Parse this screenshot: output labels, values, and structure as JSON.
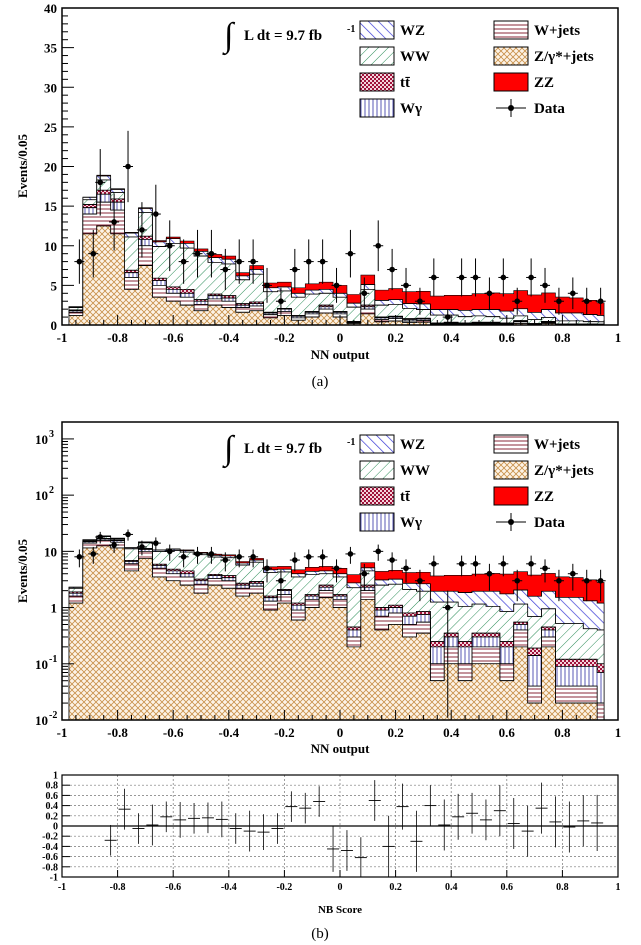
{
  "colors": {
    "WZ": "#3a3ad6",
    "WW": "#2f8f5a",
    "ttbar": "#a0123a",
    "Wgamma": "#5a5ab4",
    "Wjets": "#8a2a3a",
    "Zjets": "#c8904a",
    "ZZ": "#ff0000",
    "data": "#000000"
  },
  "icons": {
    "integral": "integral-sign-icon",
    "data_marker": "marker-with-error-bar-icon"
  },
  "panel_labels": {
    "a": "(a)",
    "b": "(b)"
  },
  "chart_data": [
    {
      "type": "area",
      "panel": "a",
      "scale": "linear",
      "xlabel": "NN output",
      "ylabel": "Events/0.05",
      "xlim": [
        -1,
        1
      ],
      "ylim": [
        0,
        40
      ],
      "xticks": [
        "-1",
        "-0.8",
        "-0.6",
        "-0.4",
        "-0.2",
        "0",
        "0.2",
        "0.4",
        "0.6",
        "0.8",
        "1"
      ],
      "yticks": [
        "0",
        "5",
        "10",
        "15",
        "20",
        "25",
        "30",
        "35",
        "40"
      ],
      "luminosity_label": "L dt = 9.7 fb",
      "luminosity_exponent": "-1",
      "legend": [
        {
          "label": "WZ",
          "key": "WZ",
          "style": "hatch-back"
        },
        {
          "label": "W+jets",
          "key": "Wjets",
          "style": "hatch-horizontal"
        },
        {
          "label": "WW",
          "key": "WW",
          "style": "hatch-forward"
        },
        {
          "label": "Z/γ*+jets",
          "key": "Zjets",
          "style": "hatch-cross"
        },
        {
          "label": "tt̄",
          "key": "ttbar",
          "style": "hatch-checker"
        },
        {
          "label": "ZZ",
          "key": "ZZ",
          "style": "solid"
        },
        {
          "label": "Wγ",
          "key": "Wgamma",
          "style": "hatch-vertical"
        },
        {
          "label": "Data",
          "key": "data",
          "style": "marker"
        }
      ],
      "bin_edges": [
        -0.975,
        -0.95,
        -0.925,
        -0.9,
        -0.875,
        -0.85,
        -0.825,
        -0.8,
        -0.775,
        -0.75,
        -0.725,
        -0.7,
        -0.675,
        -0.65,
        -0.625,
        -0.6,
        -0.575,
        -0.55,
        -0.525,
        -0.5,
        -0.475,
        -0.45,
        -0.425,
        -0.4,
        -0.375,
        -0.35,
        -0.325,
        -0.3,
        -0.275,
        -0.25,
        -0.225,
        -0.2,
        -0.175,
        -0.15,
        -0.125,
        -0.1,
        -0.075,
        -0.05,
        -0.025,
        0,
        0.025,
        0.05,
        0.075,
        0.1,
        0.125,
        0.15,
        0.175,
        0.2,
        0.225,
        0.25,
        0.275,
        0.3,
        0.325,
        0.35,
        0.375,
        0.4,
        0.425,
        0.45,
        0.475,
        0.5,
        0.525,
        0.55,
        0.575,
        0.6,
        0.625,
        0.65,
        0.675,
        0.7,
        0.725,
        0.75,
        0.775,
        0.8,
        0.825,
        0.85,
        0.875,
        0.9,
        0.925,
        0.95
      ],
      "stack_order": [
        "Zjets",
        "Wjets",
        "Wgamma",
        "ttbar",
        "WW",
        "WZ",
        "ZZ"
      ],
      "series": [
        {
          "name": "Z/γ*+jets",
          "key": "Zjets",
          "values": [
            1.2,
            1.2,
            11.5,
            11.5,
            12.5,
            12.5,
            11.5,
            11.5,
            4.5,
            4.5,
            7.5,
            7.5,
            3.5,
            3.5,
            3.0,
            3.0,
            2.5,
            2.5,
            1.8,
            1.8,
            2.5,
            2.5,
            2.2,
            2.2,
            1.6,
            1.6,
            1.8,
            1.8,
            0.9,
            0.9,
            1.2,
            1.2,
            0.6,
            0.6,
            1.0,
            1.0,
            1.5,
            1.5,
            1.0,
            1.0,
            0.2,
            0.2,
            1.4,
            1.4,
            0.4,
            0.4,
            0.5,
            0.5,
            0.3,
            0.3,
            0.35,
            0.35,
            0.05,
            0.05,
            0.1,
            0.1,
            0.05,
            0.05,
            0.1,
            0.1,
            0.1,
            0.1,
            0.05,
            0.05,
            0.2,
            0.2,
            0.02,
            0.02,
            0.2,
            0.2,
            0.02,
            0.02,
            0.02,
            0.02,
            0.02,
            0.02,
            0.01
          ]
        },
        {
          "name": "W+jets",
          "key": "Wjets",
          "values": [
            0.4,
            0.4,
            2.5,
            2.5,
            3.0,
            3.0,
            3.0,
            3.0,
            1.5,
            1.5,
            2.5,
            2.5,
            1.5,
            1.5,
            1.0,
            1.0,
            1.0,
            1.0,
            0.8,
            0.8,
            0.8,
            0.8,
            0.8,
            0.8,
            0.6,
            0.6,
            0.6,
            0.6,
            0.4,
            0.4,
            0.5,
            0.5,
            0.3,
            0.3,
            0.4,
            0.4,
            0.5,
            0.5,
            0.4,
            0.4,
            0.1,
            0.1,
            0.6,
            0.6,
            0.3,
            0.3,
            0.3,
            0.3,
            0.2,
            0.2,
            0.2,
            0.2,
            0.05,
            0.05,
            0.1,
            0.1,
            0.05,
            0.05,
            0.1,
            0.1,
            0.1,
            0.1,
            0.05,
            0.05,
            0.2,
            0.2,
            0.02,
            0.02,
            0.1,
            0.1,
            0.02,
            0.02,
            0.02,
            0.02,
            0.02,
            0.02,
            0.01
          ]
        },
        {
          "name": "Wγ",
          "key": "Wgamma",
          "values": [
            0.2,
            0.2,
            0.8,
            0.8,
            1.0,
            1.0,
            1.0,
            1.0,
            0.6,
            0.6,
            0.8,
            0.8,
            0.6,
            0.6,
            0.5,
            0.5,
            0.5,
            0.5,
            0.4,
            0.4,
            0.4,
            0.4,
            0.4,
            0.4,
            0.3,
            0.3,
            0.3,
            0.3,
            0.2,
            0.2,
            0.3,
            0.3,
            0.2,
            0.2,
            0.2,
            0.2,
            0.3,
            0.3,
            0.2,
            0.2,
            0.1,
            0.1,
            0.3,
            0.3,
            0.2,
            0.2,
            0.2,
            0.2,
            0.2,
            0.2,
            0.2,
            0.2,
            0.1,
            0.1,
            0.1,
            0.1,
            0.1,
            0.1,
            0.1,
            0.1,
            0.1,
            0.1,
            0.1,
            0.1,
            0.1,
            0.1,
            0.1,
            0.1,
            0.1,
            0.1,
            0.05,
            0.05,
            0.05,
            0.05,
            0.05,
            0.05,
            0.05
          ]
        },
        {
          "name": "tt̄",
          "key": "ttbar",
          "values": [
            0.1,
            0.1,
            0.4,
            0.4,
            0.5,
            0.5,
            0.4,
            0.4,
            0.3,
            0.3,
            0.4,
            0.4,
            0.3,
            0.3,
            0.3,
            0.3,
            0.5,
            0.5,
            0.2,
            0.2,
            0.2,
            0.2,
            0.3,
            0.3,
            0.2,
            0.2,
            0.2,
            0.2,
            0.1,
            0.1,
            0.1,
            0.1,
            0.1,
            0.1,
            0.1,
            0.1,
            0.2,
            0.2,
            0.1,
            0.1,
            0.05,
            0.05,
            0.2,
            0.2,
            0.1,
            0.1,
            0.1,
            0.1,
            0.1,
            0.1,
            0.1,
            0.1,
            0.05,
            0.05,
            0.05,
            0.05,
            0.05,
            0.05,
            0.05,
            0.05,
            0.05,
            0.05,
            0.05,
            0.05,
            0.05,
            0.05,
            0.05,
            0.05,
            0.05,
            0.05,
            0.03,
            0.03,
            0.03,
            0.03,
            0.03,
            0.03,
            0.03
          ]
        },
        {
          "name": "WW",
          "key": "WW",
          "values": [
            0.3,
            0.3,
            0.6,
            0.6,
            1.3,
            1.3,
            0.8,
            0.8,
            4.2,
            4.2,
            3.0,
            3.0,
            4.0,
            4.0,
            5.5,
            5.5,
            5.2,
            5.2,
            5.5,
            5.5,
            4.0,
            4.0,
            4.0,
            4.0,
            3.0,
            3.0,
            3.5,
            3.5,
            2.6,
            2.6,
            2.2,
            2.2,
            2.3,
            2.3,
            2.2,
            2.2,
            1.5,
            1.5,
            1.8,
            1.8,
            1.8,
            1.8,
            2.0,
            2.0,
            1.5,
            1.5,
            1.5,
            1.5,
            1.3,
            1.3,
            1.1,
            1.1,
            1.0,
            1.0,
            0.9,
            0.9,
            0.8,
            0.8,
            0.8,
            0.8,
            0.7,
            0.7,
            0.6,
            0.6,
            0.6,
            0.6,
            0.5,
            0.5,
            0.5,
            0.5,
            0.4,
            0.4,
            0.4,
            0.4,
            0.3,
            0.3,
            0.3
          ]
        },
        {
          "name": "WZ",
          "key": "WZ",
          "values": [
            0.1,
            0.1,
            0.3,
            0.3,
            0.5,
            0.5,
            0.4,
            0.4,
            0.5,
            0.5,
            0.5,
            0.5,
            0.6,
            0.6,
            0.6,
            0.6,
            0.6,
            0.6,
            0.6,
            0.6,
            0.6,
            0.6,
            0.6,
            0.6,
            0.5,
            0.5,
            0.6,
            0.6,
            0.5,
            0.5,
            0.5,
            0.5,
            0.5,
            0.5,
            0.5,
            0.5,
            0.5,
            0.5,
            0.5,
            0.5,
            0.5,
            0.5,
            0.6,
            0.6,
            0.6,
            0.6,
            0.6,
            0.6,
            0.6,
            0.6,
            0.7,
            0.7,
            0.7,
            0.7,
            0.7,
            0.7,
            0.8,
            0.8,
            0.8,
            0.8,
            0.9,
            0.9,
            0.9,
            0.9,
            0.9,
            0.9,
            0.9,
            0.9,
            1.0,
            1.0,
            1.0,
            1.0,
            1.0,
            1.0,
            0.9,
            0.9,
            0.8
          ]
        },
        {
          "name": "ZZ",
          "key": "ZZ",
          "values": [
            0.02,
            0.02,
            0.05,
            0.05,
            0.1,
            0.1,
            0.1,
            0.1,
            0.1,
            0.1,
            0.1,
            0.1,
            0.15,
            0.15,
            0.2,
            0.2,
            0.3,
            0.3,
            0.3,
            0.3,
            0.4,
            0.4,
            0.4,
            0.4,
            0.4,
            0.4,
            0.5,
            0.5,
            0.6,
            0.6,
            0.6,
            0.6,
            0.7,
            0.7,
            0.8,
            0.8,
            0.9,
            0.9,
            1.0,
            1.0,
            1.1,
            1.1,
            1.2,
            1.2,
            1.3,
            1.3,
            1.4,
            1.4,
            1.5,
            1.5,
            1.6,
            1.6,
            1.7,
            1.7,
            1.8,
            1.8,
            1.9,
            1.9,
            2.0,
            2.0,
            2.1,
            2.1,
            2.2,
            2.2,
            2.3,
            2.3,
            2.2,
            2.2,
            2.1,
            2.1,
            2.0,
            2.0,
            1.9,
            1.9,
            1.8,
            1.8,
            1.6
          ]
        }
      ],
      "data": {
        "name": "Data",
        "x": [
          -0.9375,
          -0.8875,
          -0.8625,
          -0.8125,
          -0.7625,
          -0.7125,
          -0.6625,
          -0.6125,
          -0.5625,
          -0.5125,
          -0.4625,
          -0.4125,
          -0.3625,
          -0.3125,
          -0.2625,
          -0.2125,
          -0.1625,
          -0.1125,
          -0.0625,
          -0.0125,
          0.0375,
          0.0875,
          0.1375,
          0.1875,
          0.2375,
          0.2875,
          0.3375,
          0.3875,
          0.4375,
          0.4875,
          0.5375,
          0.5875,
          0.6375,
          0.6875,
          0.7375,
          0.7875,
          0.8375,
          0.8875,
          0.9375
        ],
        "y": [
          8,
          9,
          18,
          13,
          20,
          12,
          14,
          10,
          8,
          9,
          9,
          7,
          8,
          8,
          5,
          3,
          7,
          8,
          8,
          5,
          9,
          4,
          10,
          7,
          5,
          3,
          6,
          1,
          6,
          6,
          4,
          6,
          3,
          6,
          5,
          3,
          4,
          3,
          3
        ],
        "yerr": [
          2.8,
          3.0,
          4.2,
          3.6,
          4.5,
          3.5,
          3.7,
          3.2,
          2.8,
          3.0,
          3.0,
          2.6,
          2.8,
          2.8,
          2.2,
          1.7,
          2.6,
          2.8,
          2.8,
          2.2,
          3.0,
          2.0,
          3.2,
          2.6,
          2.2,
          1.7,
          2.4,
          1.0,
          2.4,
          2.4,
          2.0,
          2.4,
          1.7,
          2.4,
          2.2,
          1.7,
          2.0,
          1.7,
          1.7
        ]
      }
    },
    {
      "type": "area",
      "panel": "b",
      "scale": "log",
      "xlabel": "NN output",
      "ylabel": "Events/0.05",
      "xlim": [
        -1,
        1
      ],
      "ylim": [
        0.01,
        2000
      ],
      "xticks": [
        "-1",
        "-0.8",
        "-0.6",
        "-0.4",
        "-0.2",
        "0",
        "0.2",
        "0.4",
        "0.6",
        "0.8",
        "1"
      ],
      "yticks": [
        {
          "value": 0.01,
          "base": "10",
          "exp": "-2"
        },
        {
          "value": 0.1,
          "base": "10",
          "exp": "-1"
        },
        {
          "value": 1,
          "base": "1",
          "exp": ""
        },
        {
          "value": 10,
          "base": "10",
          "exp": ""
        },
        {
          "value": 100,
          "base": "10",
          "exp": "2"
        },
        {
          "value": 1000,
          "base": "10",
          "exp": "3"
        }
      ],
      "luminosity_label": "L dt = 9.7 fb",
      "luminosity_exponent": "-1",
      "same_contents_as_panel": "a"
    },
    {
      "type": "scatter",
      "panel": "b-ratio",
      "xlabel": "NB Score",
      "ylabel": "",
      "xlim": [
        -1,
        1
      ],
      "ylim": [
        -1,
        1
      ],
      "xticks": [
        "-1",
        "-0.8",
        "-0.6",
        "-0.4",
        "-0.2",
        "0",
        "0.2",
        "0.4",
        "0.6",
        "0.8",
        "1"
      ],
      "yticks": [
        "-1",
        "-0.8",
        "-0.6",
        "-0.4",
        "-0.2",
        "0",
        "0.2",
        "0.4",
        "0.6",
        "0.8",
        "1"
      ],
      "grid": true,
      "points": {
        "x": [
          -0.825,
          -0.775,
          -0.725,
          -0.675,
          -0.625,
          -0.575,
          -0.525,
          -0.475,
          -0.425,
          -0.375,
          -0.325,
          -0.275,
          -0.225,
          -0.175,
          -0.125,
          -0.075,
          -0.025,
          0.025,
          0.075,
          0.125,
          0.175,
          0.225,
          0.275,
          0.325,
          0.375,
          0.425,
          0.475,
          0.525,
          0.575,
          0.625,
          0.675,
          0.725,
          0.775,
          0.825,
          0.875,
          0.925
        ],
        "y": [
          -0.28,
          0.33,
          -0.05,
          0.02,
          0.18,
          0.12,
          0.15,
          0.16,
          0.13,
          -0.05,
          -0.1,
          -0.12,
          -0.05,
          0.38,
          0.35,
          0.48,
          -0.45,
          -0.48,
          -0.62,
          0.5,
          -0.4,
          0.38,
          -0.3,
          0.4,
          0.02,
          0.18,
          0.25,
          0.12,
          0.3,
          0.05,
          -0.1,
          0.35,
          0.08,
          -0.02,
          0.1,
          0.06
        ],
        "yerr": [
          0.3,
          0.4,
          0.3,
          0.4,
          0.3,
          0.35,
          0.3,
          0.3,
          0.35,
          0.3,
          0.4,
          0.35,
          0.3,
          0.3,
          0.3,
          0.3,
          0.45,
          0.4,
          0.4,
          0.4,
          0.6,
          0.45,
          0.6,
          0.4,
          0.5,
          0.45,
          0.4,
          0.4,
          0.5,
          0.5,
          0.5,
          0.5,
          0.5,
          0.5,
          0.5,
          0.55
        ]
      }
    }
  ]
}
